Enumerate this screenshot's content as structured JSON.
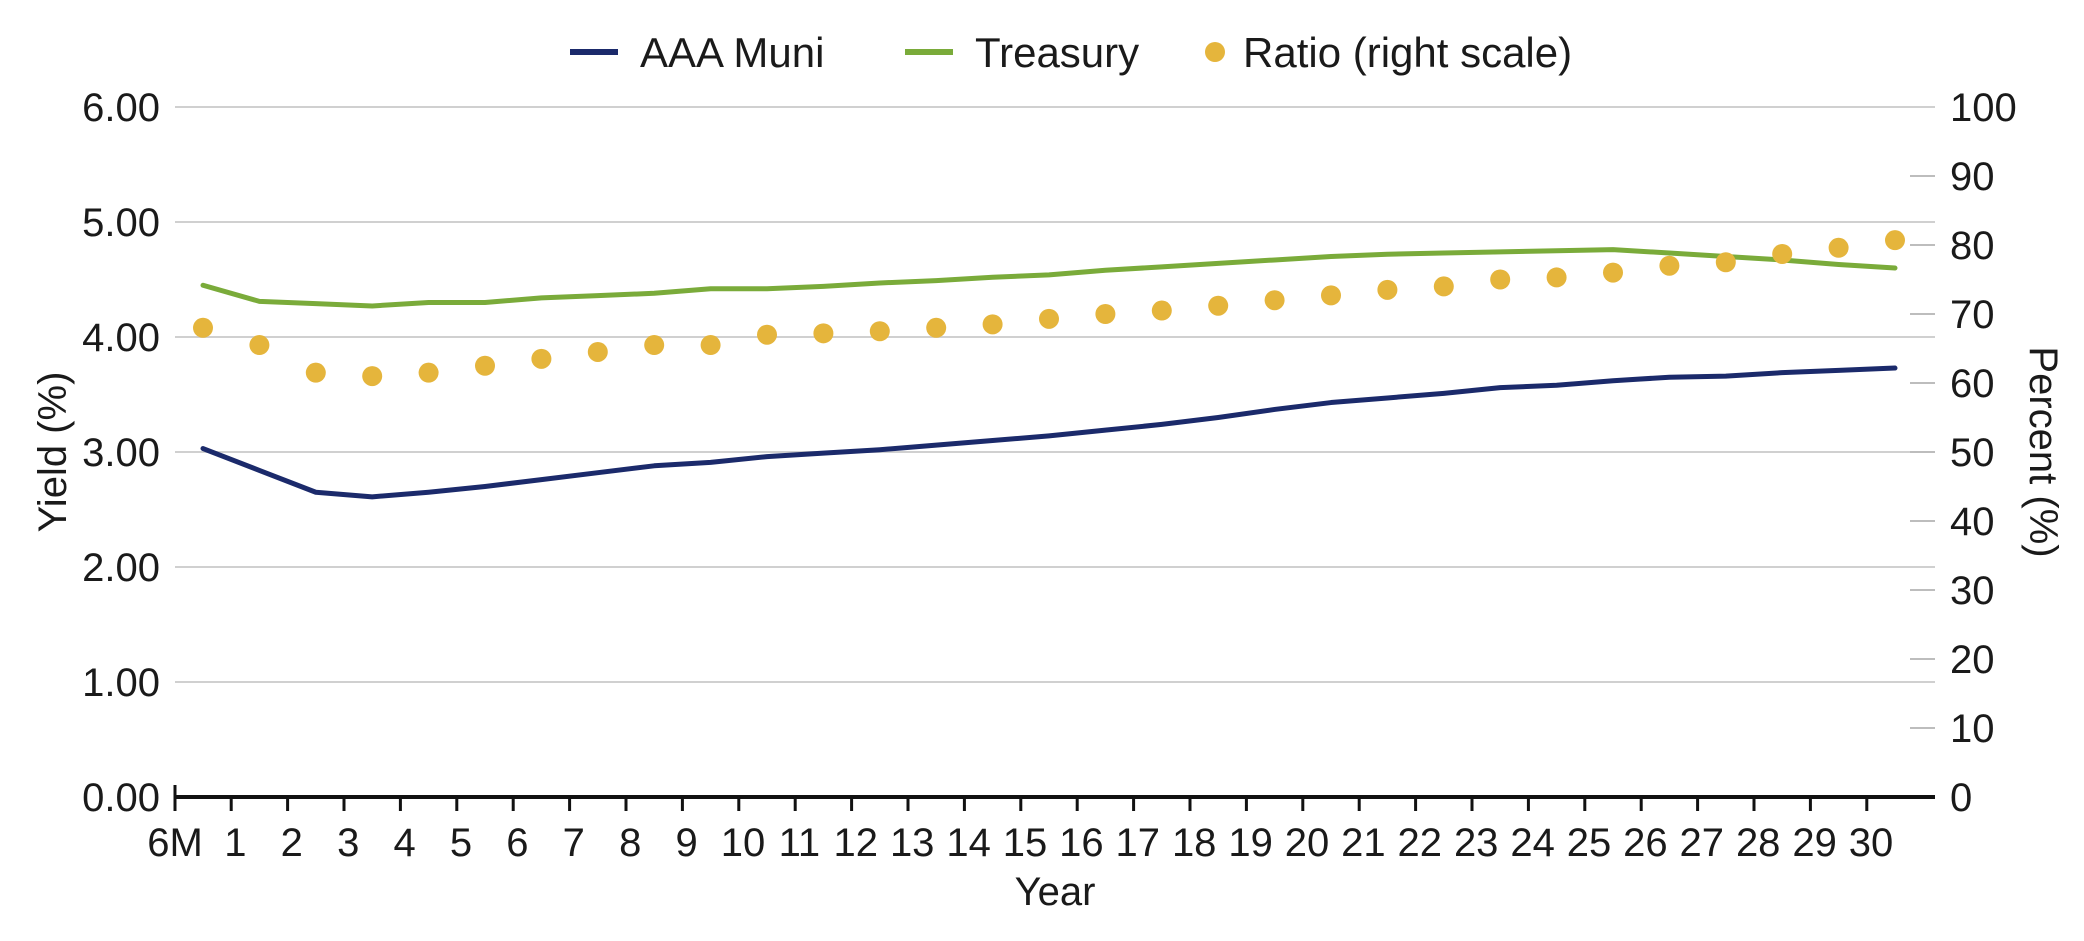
{
  "chart_data": {
    "type": "line",
    "xlabel": "Year",
    "ylabel": "Yield (%)",
    "y2label": "Percent (%)",
    "categories": [
      "6M",
      "1",
      "2",
      "3",
      "4",
      "5",
      "6",
      "7",
      "8",
      "9",
      "10",
      "11",
      "12",
      "13",
      "14",
      "15",
      "16",
      "17",
      "18",
      "19",
      "20",
      "21",
      "22",
      "23",
      "24",
      "25",
      "26",
      "27",
      "28",
      "29",
      "30"
    ],
    "ylim": [
      0,
      6
    ],
    "y2lim": [
      0,
      100
    ],
    "yticks": [
      "0.00",
      "1.00",
      "2.00",
      "3.00",
      "4.00",
      "5.00",
      "6.00"
    ],
    "y2ticks": [
      "0",
      "10",
      "20",
      "30",
      "40",
      "50",
      "60",
      "70",
      "80",
      "90",
      "100"
    ],
    "grid": true,
    "legend_position": "top-center",
    "series": [
      {
        "name": "AAA Muni",
        "type": "line",
        "axis": "left",
        "color": "#1b2a6b",
        "values": [
          3.03,
          2.84,
          2.65,
          2.61,
          2.65,
          2.7,
          2.76,
          2.82,
          2.88,
          2.91,
          2.96,
          2.99,
          3.02,
          3.06,
          3.1,
          3.14,
          3.19,
          3.24,
          3.3,
          3.37,
          3.43,
          3.47,
          3.51,
          3.56,
          3.58,
          3.62,
          3.65,
          3.66,
          3.69,
          3.71,
          3.73
        ]
      },
      {
        "name": "Treasury",
        "type": "line",
        "axis": "left",
        "color": "#7aab3a",
        "values": [
          4.45,
          4.31,
          4.29,
          4.27,
          4.3,
          4.3,
          4.34,
          4.36,
          4.38,
          4.42,
          4.42,
          4.44,
          4.47,
          4.49,
          4.52,
          4.54,
          4.58,
          4.61,
          4.64,
          4.67,
          4.7,
          4.72,
          4.73,
          4.74,
          4.75,
          4.76,
          4.73,
          4.7,
          4.67,
          4.63,
          4.6
        ]
      },
      {
        "name": "Ratio (right scale)",
        "type": "scatter",
        "axis": "right",
        "color": "#e5b53c",
        "values": [
          68.0,
          65.5,
          61.5,
          61.0,
          61.5,
          62.5,
          63.5,
          64.5,
          65.5,
          65.5,
          67.0,
          67.2,
          67.5,
          68.0,
          68.5,
          69.3,
          70.0,
          70.5,
          71.2,
          72.0,
          72.7,
          73.5,
          74.0,
          75.0,
          75.3,
          76.0,
          77.0,
          77.5,
          78.7,
          79.6,
          80.7
        ]
      }
    ]
  }
}
